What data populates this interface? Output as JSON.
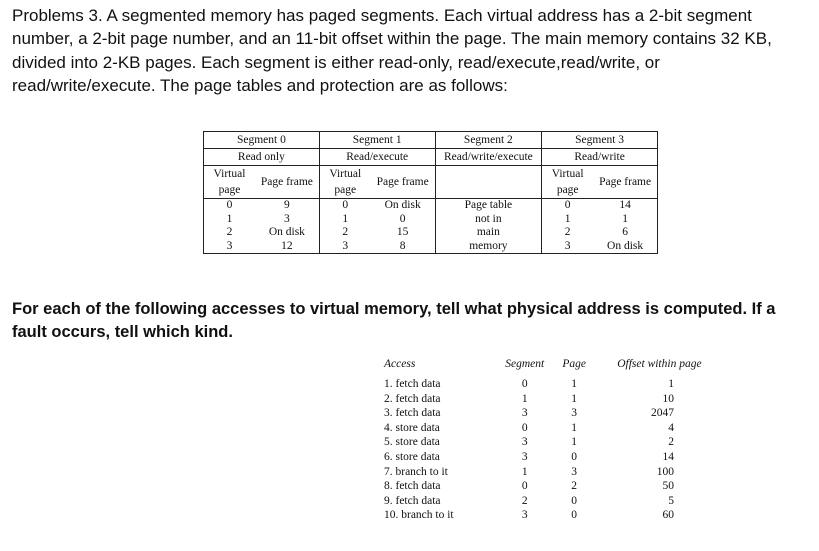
{
  "problem_text": "Problems 3. A segmented memory has paged segments. Each virtual address has a 2-bit segment number, a 2-bit page number, and an 11-bit offset within the page. The main memory contains 32 KB, divided into 2-KB pages. Each segment is either read-only, read/execute,read/write, or read/write/execute. The page tables and protection are as follows:",
  "segments": [
    {
      "name": "Segment 0",
      "protection": "Read only",
      "col_virtual": "Virtual page",
      "col_frame": "Page frame",
      "rows": [
        [
          "0",
          "9"
        ],
        [
          "1",
          "3"
        ],
        [
          "2",
          "On disk"
        ],
        [
          "3",
          "12"
        ]
      ]
    },
    {
      "name": "Segment 1",
      "protection": "Read/execute",
      "col_virtual": "Virtual page",
      "col_frame": "Page frame",
      "rows": [
        [
          "0",
          "On disk"
        ],
        [
          "1",
          "0"
        ],
        [
          "2",
          "15"
        ],
        [
          "3",
          "8"
        ]
      ]
    },
    {
      "name": "Segment 2",
      "protection": "Read/write/execute",
      "note": [
        "Page table",
        "not in",
        "main",
        "memory"
      ]
    },
    {
      "name": "Segment 3",
      "protection": "Read/write",
      "col_virtual": "Virtual page",
      "col_frame": "Page frame",
      "rows": [
        [
          "0",
          "14"
        ],
        [
          "1",
          "1"
        ],
        [
          "2",
          "6"
        ],
        [
          "3",
          "On disk"
        ]
      ]
    }
  ],
  "question_text": "For each of the following accesses to virtual memory, tell what physical address is computed. If a fault occurs, tell which kind.",
  "accesses": {
    "headers": [
      "Access",
      "Segment",
      "Page",
      "Offset within page"
    ],
    "rows": [
      [
        "1. fetch data",
        "0",
        "1",
        "1"
      ],
      [
        "2. fetch data",
        "1",
        "1",
        "10"
      ],
      [
        "3. fetch data",
        "3",
        "3",
        "2047"
      ],
      [
        "4. store data",
        "0",
        "1",
        "4"
      ],
      [
        "5. store data",
        "3",
        "1",
        "2"
      ],
      [
        "6. store data",
        "3",
        "0",
        "14"
      ],
      [
        "7. branch to it",
        "1",
        "3",
        "100"
      ],
      [
        "8. fetch data",
        "0",
        "2",
        "50"
      ],
      [
        "9. fetch data",
        "2",
        "0",
        "5"
      ],
      [
        "10. branch to it",
        "3",
        "0",
        "60"
      ]
    ]
  }
}
